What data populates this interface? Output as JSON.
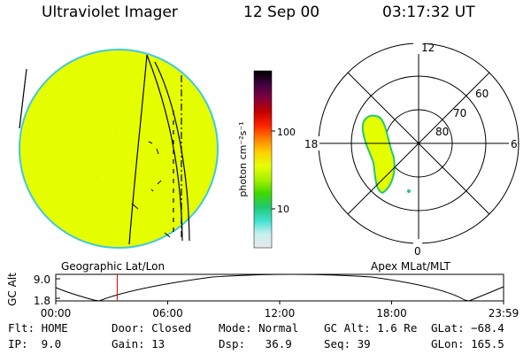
{
  "header": {
    "instrument": "Ultraviolet Imager",
    "date": "12 Sep 00",
    "time": "03:17:32 UT"
  },
  "colors": {
    "image_fill": "#e6ff00",
    "image_rim": "#40c8e0",
    "red_marker": "#e00000"
  },
  "colorbar": {
    "unit_label": "photon cm⁻²s⁻¹",
    "ticks": [
      "100",
      "10"
    ],
    "stops": [
      "#e8e8e8",
      "#c8f0f0",
      "#40e0d0",
      "#20c870",
      "#40d800",
      "#a8f000",
      "#e6ff00",
      "#ffd000",
      "#ff8000",
      "#ff2000",
      "#c00000",
      "#800040",
      "#400040",
      "#000000"
    ]
  },
  "geographic_panel": {
    "caption": "Geographic Lat/Lon"
  },
  "polar_panel": {
    "caption": "Apex MLat/MLT",
    "mlt_labels": {
      "top": "12",
      "bottom": "0",
      "left": "18",
      "right": "6"
    },
    "lat_labels": [
      "60",
      "70",
      "80"
    ]
  },
  "altitude_plot": {
    "ylabel": "GC Alt",
    "yticks": [
      "9.0",
      "1.8"
    ],
    "xticks": [
      "00:00",
      "06:00",
      "12:00",
      "18:00",
      "23:59"
    ],
    "marker_time": "03:17:32"
  },
  "status": {
    "row1": {
      "flt": "Flt: HOME",
      "door": "Door: Closed",
      "mode": "Mode: Normal",
      "gcalt": "GC Alt: 1.6 Re",
      "glat": "GLat: −68.4"
    },
    "row2": {
      "ip": "IP:  9.0",
      "gain": "Gain: 13",
      "dsp": "Dsp:   36.9",
      "seq": "Seq: 39",
      "glon": "GLon: 165.5"
    }
  }
}
